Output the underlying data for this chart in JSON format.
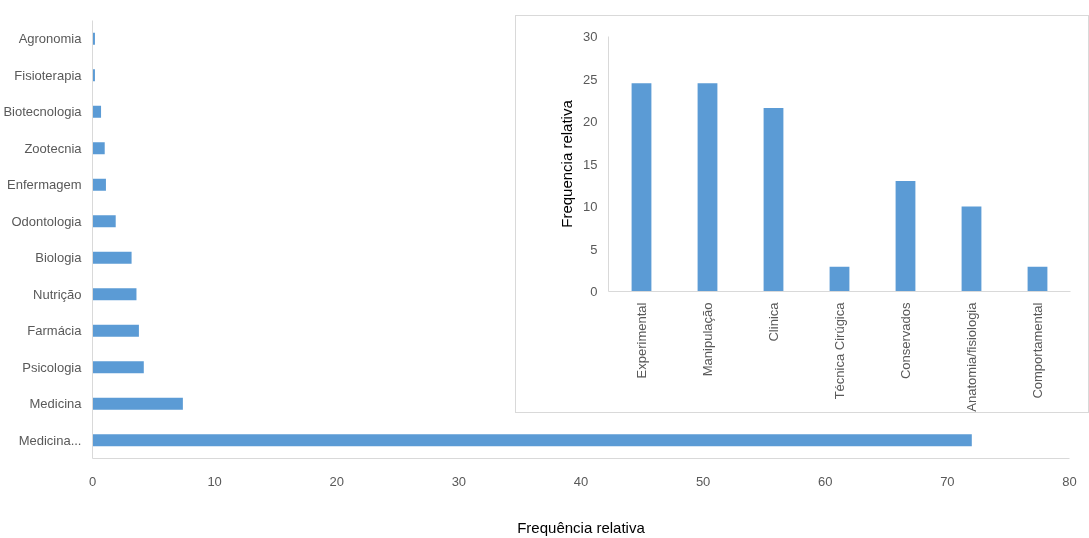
{
  "chart_data": [
    {
      "type": "bar",
      "orientation": "horizontal",
      "xlabel": "Frequência relativa",
      "categories": [
        "Agronomia",
        "Fisioterapia",
        "Biotecnologia",
        "Zootecnia",
        "Enfermagem",
        "Odontologia",
        "Biologia",
        "Nutrição",
        "Farmácia",
        "Psicologia",
        "Medicina",
        "Medicina..."
      ],
      "values": [
        0.2,
        0.2,
        0.7,
        1.0,
        1.1,
        1.9,
        3.2,
        3.6,
        3.8,
        4.2,
        7.4,
        72.0
      ],
      "color": "#5b9bd5",
      "xlim": [
        0,
        80
      ],
      "xticks": [
        0,
        10,
        20,
        30,
        40,
        50,
        60,
        70,
        80
      ],
      "grid": false
    },
    {
      "type": "bar",
      "ylabel": "Frequencia relativa",
      "categories": [
        "Experimental",
        "Manipulação",
        "Clinica",
        "Técnica Cirúgica",
        "Conservados",
        "Anatomia/fisiologia",
        "Comportamental"
      ],
      "values": [
        24.5,
        24.5,
        21.6,
        2.9,
        13.0,
        10.0,
        2.9
      ],
      "color": "#5b9bd5",
      "ylim": [
        0,
        30
      ],
      "yticks": [
        0,
        5,
        10,
        15,
        20,
        25,
        30
      ],
      "grid": false
    }
  ]
}
